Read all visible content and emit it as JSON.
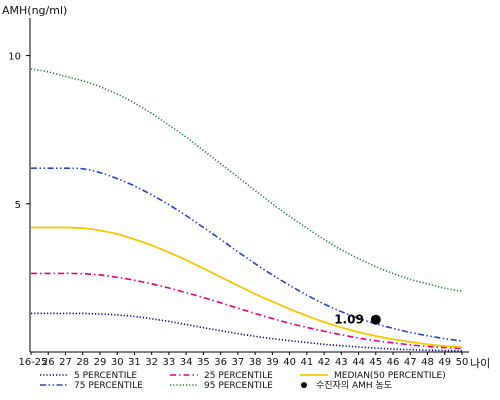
{
  "chart_data": {
    "type": "line",
    "ylabel": "AMH(ng/ml)",
    "xlabel": "나이",
    "categories": [
      "16-25",
      "26",
      "27",
      "28",
      "29",
      "30",
      "31",
      "32",
      "33",
      "34",
      "35",
      "36",
      "37",
      "38",
      "39",
      "40",
      "41",
      "42",
      "43",
      "44",
      "45",
      "46",
      "47",
      "48",
      "49",
      "50"
    ],
    "yticks": [
      5,
      10
    ],
    "ylim": [
      0,
      11.2
    ],
    "grid": false,
    "legend_position": "bottom",
    "series": [
      {
        "name": "5 PERCENTILE",
        "color": "#000080",
        "dash": "dotted",
        "values": [
          1.3,
          1.3,
          1.3,
          1.3,
          1.28,
          1.25,
          1.2,
          1.12,
          1.03,
          0.93,
          0.82,
          0.72,
          0.62,
          0.53,
          0.45,
          0.38,
          0.32,
          0.26,
          0.21,
          0.17,
          0.13,
          0.1,
          0.08,
          0.06,
          0.05,
          0.04
        ]
      },
      {
        "name": "25 PERCENTILE",
        "color": "#e0007a",
        "dash": "dashdot",
        "values": [
          2.65,
          2.65,
          2.65,
          2.64,
          2.6,
          2.52,
          2.42,
          2.3,
          2.16,
          2.0,
          1.84,
          1.66,
          1.48,
          1.3,
          1.13,
          0.97,
          0.83,
          0.7,
          0.58,
          0.47,
          0.38,
          0.31,
          0.24,
          0.19,
          0.15,
          0.12
        ]
      },
      {
        "name": "MEDIAN(50 PERCENTILE)",
        "color": "#f5c800",
        "dash": "solid",
        "values": [
          4.2,
          4.2,
          4.2,
          4.18,
          4.1,
          3.98,
          3.8,
          3.6,
          3.36,
          3.1,
          2.82,
          2.53,
          2.24,
          1.96,
          1.7,
          1.45,
          1.22,
          1.01,
          0.83,
          0.67,
          0.54,
          0.43,
          0.34,
          0.26,
          0.2,
          0.16
        ]
      },
      {
        "name": "75 PERCENTILE",
        "color": "#2244cc",
        "dash": "dashdotdot",
        "values": [
          6.2,
          6.2,
          6.2,
          6.18,
          6.05,
          5.85,
          5.6,
          5.3,
          4.97,
          4.6,
          4.2,
          3.8,
          3.38,
          2.98,
          2.6,
          2.25,
          1.92,
          1.62,
          1.36,
          1.14,
          0.95,
          0.8,
          0.66,
          0.55,
          0.45,
          0.37
        ]
      },
      {
        "name": "95 PERCENTILE",
        "color": "#1a7a3a",
        "dash": "dotted",
        "values": [
          9.55,
          9.45,
          9.3,
          9.15,
          8.95,
          8.7,
          8.4,
          8.05,
          7.65,
          7.25,
          6.8,
          6.35,
          5.9,
          5.45,
          5.0,
          4.58,
          4.18,
          3.8,
          3.45,
          3.15,
          2.88,
          2.65,
          2.45,
          2.3,
          2.15,
          2.05
        ]
      }
    ],
    "marker": {
      "label": "수진자의 AMH 농도",
      "x": "45",
      "y": 1.09,
      "display": "1.09",
      "color": "#000000"
    }
  }
}
